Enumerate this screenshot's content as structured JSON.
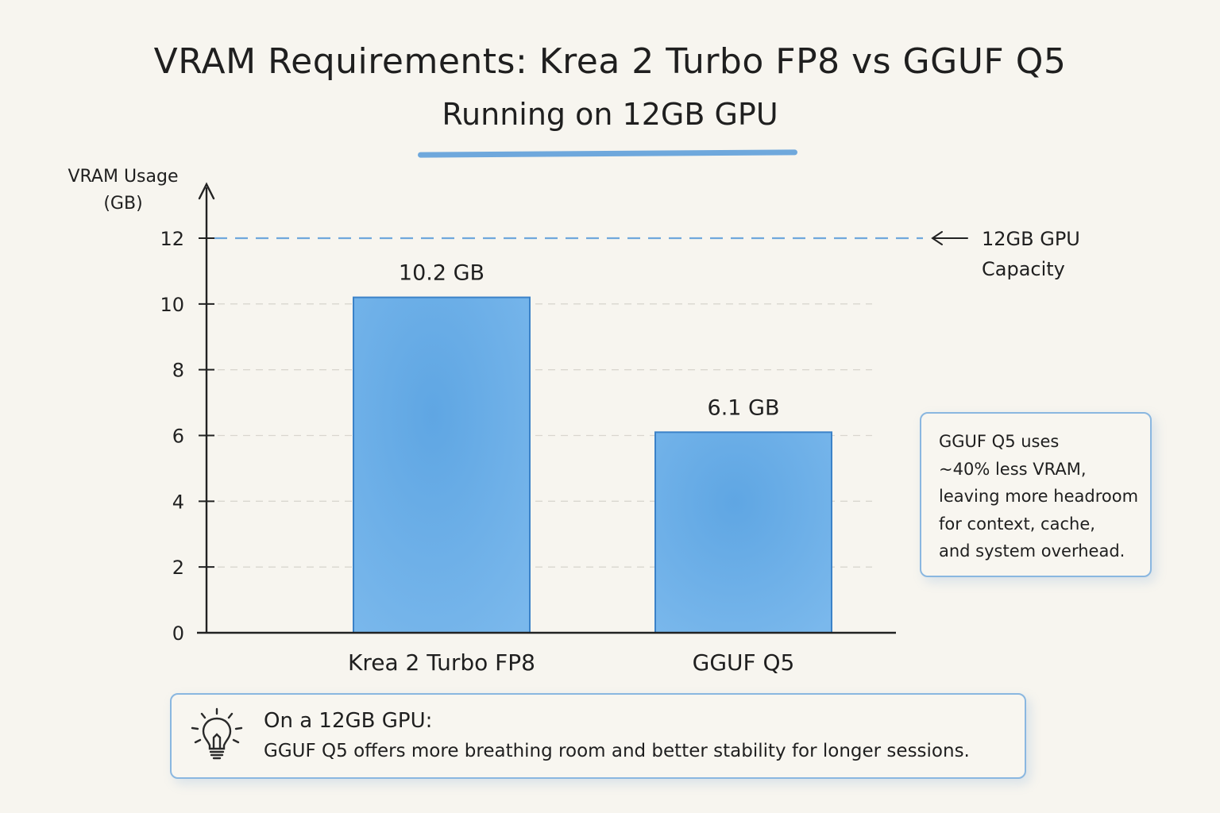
{
  "title": "VRAM Requirements: Krea 2 Turbo FP8 vs GGUF Q5",
  "subtitle": "Running on 12GB GPU",
  "capacity_annotation": {
    "line1": "12GB GPU",
    "line2": "Capacity"
  },
  "note": {
    "lines": [
      "GGUF Q5 uses",
      "~40% less VRAM,",
      "leaving more headroom",
      "for context, cache,",
      "and system overhead."
    ]
  },
  "tip": {
    "icon": "lightbulb-icon",
    "heading": "On a 12GB GPU:",
    "body": "GGUF Q5 offers more breathing room and better stability for longer sessions."
  },
  "colors": {
    "bar_fill": "#6aaee6",
    "bar_stroke": "#3b82c8",
    "capacity_line": "#6fa8dc",
    "accent": "#6fa8dc"
  },
  "chart_data": {
    "type": "bar",
    "title": "VRAM Requirements: Krea 2 Turbo FP8 vs GGUF Q5",
    "subtitle": "Running on 12GB GPU",
    "ylabel_lines": [
      "VRAM Usage",
      "(GB)"
    ],
    "xlabel": "",
    "categories": [
      "Krea 2 Turbo FP8",
      "GGUF Q5"
    ],
    "values": [
      10.2,
      6.1
    ],
    "value_labels": [
      "10.2 GB",
      "6.1 GB"
    ],
    "ylim": [
      0,
      12
    ],
    "yticks": [
      0,
      2,
      4,
      6,
      8,
      10,
      12
    ],
    "grid": true,
    "reference_line": {
      "value": 12,
      "style": "dashed",
      "label": "12GB GPU Capacity"
    }
  }
}
